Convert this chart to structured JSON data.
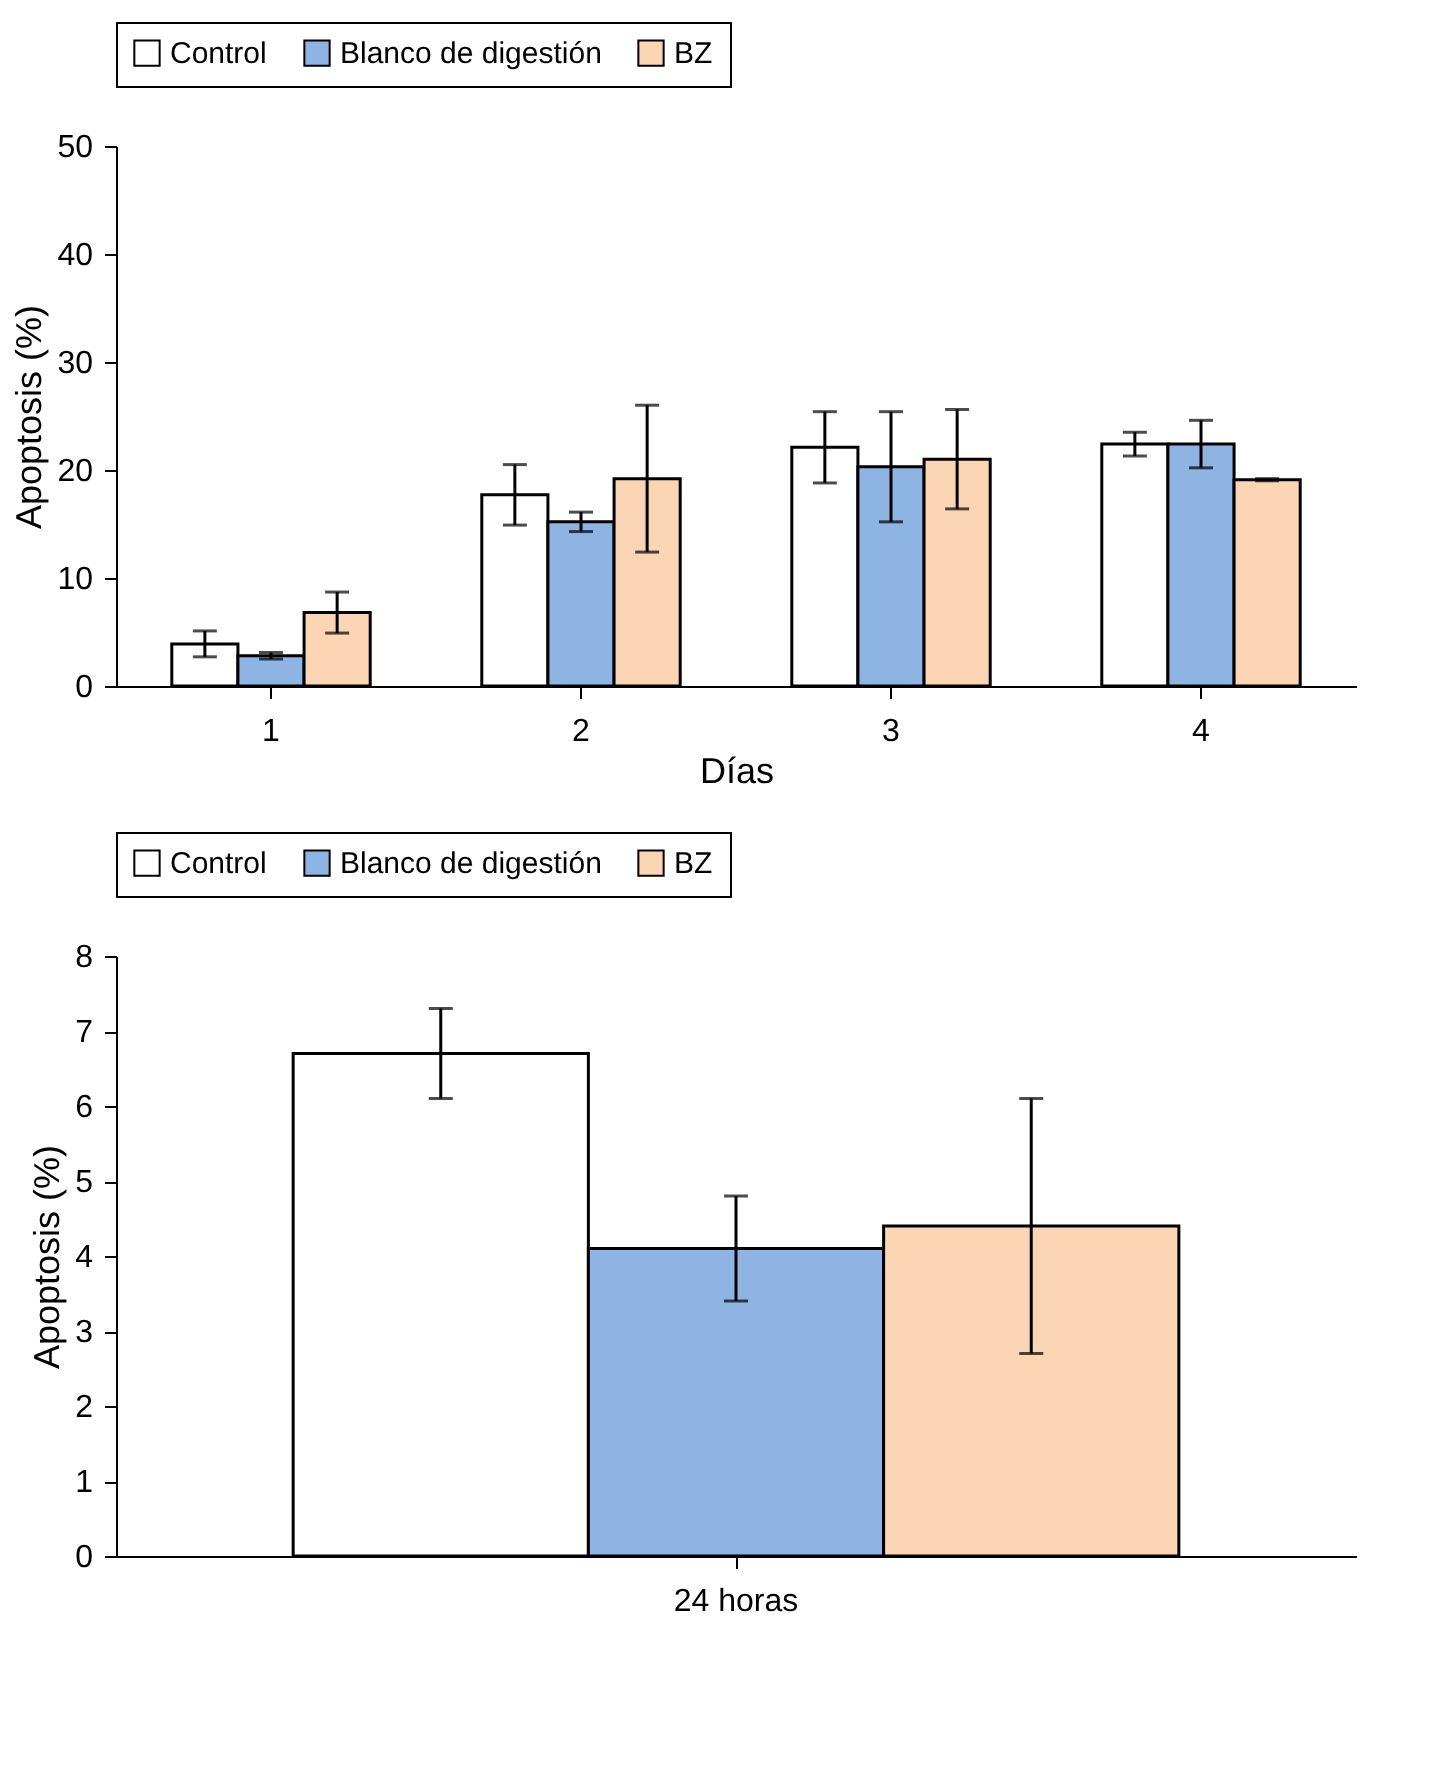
{
  "chart_data": [
    {
      "type": "bar",
      "categories": [
        "1",
        "2",
        "3",
        "4"
      ],
      "xlabel": "Días",
      "ylabel": "Apoptosis (%)",
      "ylim": [
        0,
        50
      ],
      "yticks": [
        0,
        10,
        20,
        30,
        40,
        50
      ],
      "grid": false,
      "legend": "top",
      "series": [
        {
          "name": "Control",
          "color": "#ffffff",
          "values": [
            3.9,
            17.7,
            22.1,
            22.4
          ],
          "errors": [
            1.2,
            2.8,
            3.3,
            1.1
          ]
        },
        {
          "name": "Blanco de digestión",
          "color": "#8eb4e3",
          "values": [
            2.8,
            15.2,
            20.3,
            22.4
          ],
          "errors": [
            0.3,
            0.9,
            5.1,
            2.2
          ]
        },
        {
          "name": "BZ",
          "color": "#fcd5b5",
          "values": [
            6.8,
            19.2,
            21.0,
            19.1
          ],
          "errors": [
            1.9,
            6.8,
            4.6,
            0.1
          ]
        }
      ]
    },
    {
      "type": "bar",
      "categories": [
        "24 horas"
      ],
      "ylabel": "Apoptosis (%)",
      "ylim": [
        0,
        8
      ],
      "yticks": [
        0,
        1,
        2,
        3,
        4,
        5,
        6,
        7,
        8
      ],
      "grid": false,
      "legend": "top",
      "series": [
        {
          "name": "Control",
          "color": "#ffffff",
          "values": [
            6.7
          ],
          "errors": [
            0.6
          ]
        },
        {
          "name": "Blanco de digestión",
          "color": "#8eb4e3",
          "values": [
            4.1
          ],
          "errors": [
            0.7
          ]
        },
        {
          "name": "BZ",
          "color": "#fcd5b5",
          "values": [
            4.4
          ],
          "errors": [
            1.7
          ]
        }
      ]
    }
  ]
}
